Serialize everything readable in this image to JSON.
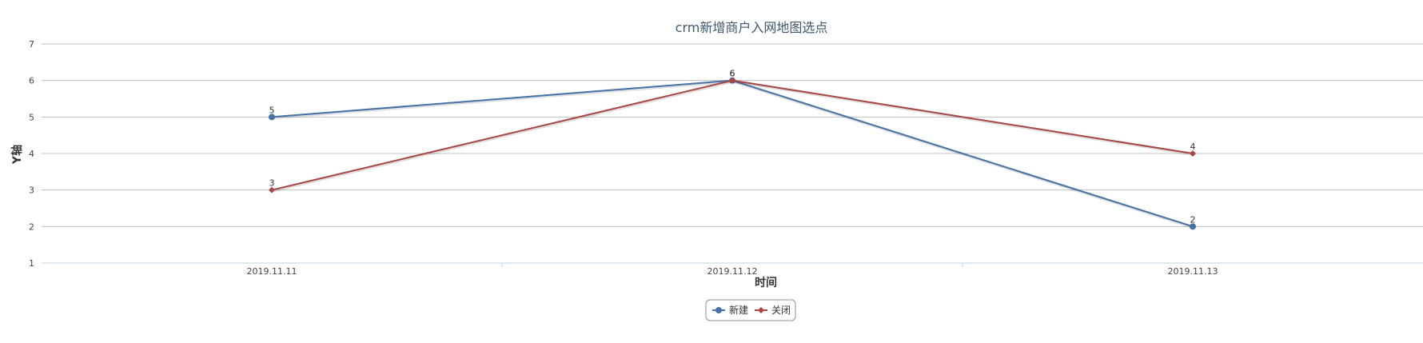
{
  "chart_data": {
    "type": "line",
    "title": "crm新增商户入网地图选点",
    "xlabel": "时间",
    "ylabel": "Y轴",
    "categories": [
      "2019.11.11",
      "2019.11.12",
      "2019.11.13"
    ],
    "yticks": [
      "1",
      "2",
      "3",
      "4",
      "5",
      "6",
      "7"
    ],
    "ylim": [
      1,
      7
    ],
    "grid": true,
    "legend_position": "bottom-center",
    "series": [
      {
        "name": "新建",
        "values": [
          5,
          6,
          2
        ],
        "color": "#4572A7",
        "marker": "circle"
      },
      {
        "name": "关闭",
        "values": [
          3,
          6,
          4
        ],
        "color": "#AA4643",
        "marker": "diamond"
      }
    ]
  }
}
